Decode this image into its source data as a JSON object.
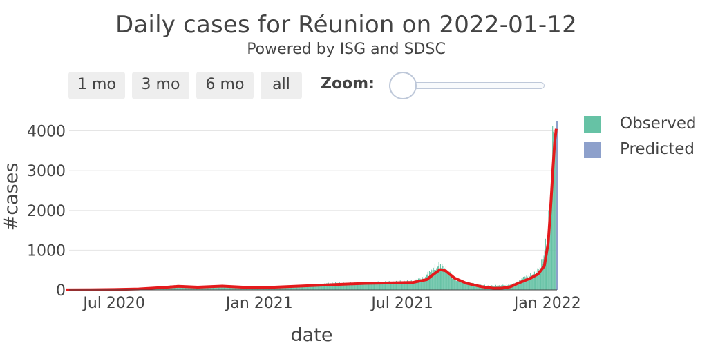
{
  "header": {
    "title": "Daily cases for Réunion on 2022-01-12",
    "subtitle": "Powered by ISG and SDSC"
  },
  "controls": {
    "range_buttons": [
      "1 mo",
      "3 mo",
      "6 mo",
      "all"
    ],
    "zoom_label": "Zoom:"
  },
  "legend": {
    "items": [
      {
        "label": "Observed",
        "color": "#66c2a5"
      },
      {
        "label": "Predicted",
        "color": "#8da0cb"
      }
    ]
  },
  "chart_data": {
    "type": "bar",
    "xlabel": "date",
    "ylabel": "#cases",
    "x_tick_labels": [
      "Jul 2020",
      "Jan 2021",
      "Jul 2021",
      "Jan 2022"
    ],
    "y_ticks": [
      0,
      1000,
      2000,
      3000,
      4000
    ],
    "ylim": [
      0,
      4200
    ],
    "grid": true,
    "legend_position": "right",
    "series": [
      {
        "name": "Observed",
        "color": "#66c2a5",
        "weekly_points": [
          [
            "2020-05-20",
            3
          ],
          [
            "2020-06-10",
            8
          ],
          [
            "2020-07-01",
            15
          ],
          [
            "2020-07-22",
            25
          ],
          [
            "2020-08-12",
            35
          ],
          [
            "2020-08-26",
            60
          ],
          [
            "2020-09-09",
            100
          ],
          [
            "2020-09-23",
            110
          ],
          [
            "2020-10-07",
            90
          ],
          [
            "2020-10-21",
            80
          ],
          [
            "2020-11-04",
            90
          ],
          [
            "2020-11-18",
            110
          ],
          [
            "2020-12-02",
            90
          ],
          [
            "2020-12-16",
            80
          ],
          [
            "2021-01-06",
            70
          ],
          [
            "2021-01-27",
            80
          ],
          [
            "2021-02-17",
            100
          ],
          [
            "2021-03-10",
            120
          ],
          [
            "2021-03-24",
            150
          ],
          [
            "2021-04-07",
            170
          ],
          [
            "2021-04-21",
            160
          ],
          [
            "2021-05-05",
            170
          ],
          [
            "2021-05-19",
            180
          ],
          [
            "2021-06-02",
            190
          ],
          [
            "2021-06-16",
            190
          ],
          [
            "2021-06-30",
            200
          ],
          [
            "2021-07-14",
            220
          ],
          [
            "2021-07-28",
            300
          ],
          [
            "2021-08-04",
            450
          ],
          [
            "2021-08-11",
            550
          ],
          [
            "2021-08-18",
            620
          ],
          [
            "2021-08-25",
            500
          ],
          [
            "2021-09-01",
            350
          ],
          [
            "2021-09-08",
            250
          ],
          [
            "2021-09-22",
            180
          ],
          [
            "2021-10-06",
            120
          ],
          [
            "2021-10-20",
            100
          ],
          [
            "2021-11-03",
            110
          ],
          [
            "2021-11-17",
            130
          ],
          [
            "2021-11-24",
            200
          ],
          [
            "2021-12-01",
            300
          ],
          [
            "2021-12-08",
            350
          ],
          [
            "2021-12-15",
            400
          ],
          [
            "2021-12-22",
            550
          ],
          [
            "2021-12-25",
            700
          ],
          [
            "2021-12-28",
            1000
          ],
          [
            "2021-12-31",
            1300
          ],
          [
            "2022-01-02",
            1800
          ],
          [
            "2022-01-04",
            2200
          ],
          [
            "2022-01-06",
            2800
          ],
          [
            "2022-01-08",
            4150
          ],
          [
            "2022-01-09",
            3400
          ],
          [
            "2022-01-10",
            3900
          ],
          [
            "2022-01-11",
            3800
          ]
        ]
      },
      {
        "name": "Predicted",
        "color": "#8da0cb",
        "weekly_points": [
          [
            "2022-01-12",
            4250
          ]
        ]
      },
      {
        "name": "trend",
        "color": "#e41a1c",
        "weekly_points": [
          [
            "2020-05-01",
            2
          ],
          [
            "2020-06-01",
            5
          ],
          [
            "2020-07-01",
            10
          ],
          [
            "2020-08-01",
            25
          ],
          [
            "2020-09-01",
            60
          ],
          [
            "2020-09-20",
            90
          ],
          [
            "2020-10-15",
            70
          ],
          [
            "2020-11-15",
            95
          ],
          [
            "2020-12-15",
            65
          ],
          [
            "2021-01-15",
            65
          ],
          [
            "2021-02-15",
            90
          ],
          [
            "2021-03-15",
            115
          ],
          [
            "2021-04-15",
            140
          ],
          [
            "2021-05-15",
            165
          ],
          [
            "2021-06-15",
            175
          ],
          [
            "2021-07-15",
            190
          ],
          [
            "2021-08-01",
            260
          ],
          [
            "2021-08-10",
            400
          ],
          [
            "2021-08-18",
            510
          ],
          [
            "2021-08-25",
            480
          ],
          [
            "2021-09-05",
            300
          ],
          [
            "2021-09-20",
            170
          ],
          [
            "2021-10-10",
            80
          ],
          [
            "2021-10-25",
            40
          ],
          [
            "2021-11-05",
            45
          ],
          [
            "2021-11-15",
            80
          ],
          [
            "2021-11-25",
            170
          ],
          [
            "2021-12-10",
            290
          ],
          [
            "2021-12-20",
            400
          ],
          [
            "2021-12-28",
            600
          ],
          [
            "2022-01-02",
            1200
          ],
          [
            "2022-01-05",
            2100
          ],
          [
            "2022-01-08",
            3100
          ],
          [
            "2022-01-10",
            3700
          ],
          [
            "2022-01-12",
            4050
          ]
        ]
      }
    ]
  }
}
